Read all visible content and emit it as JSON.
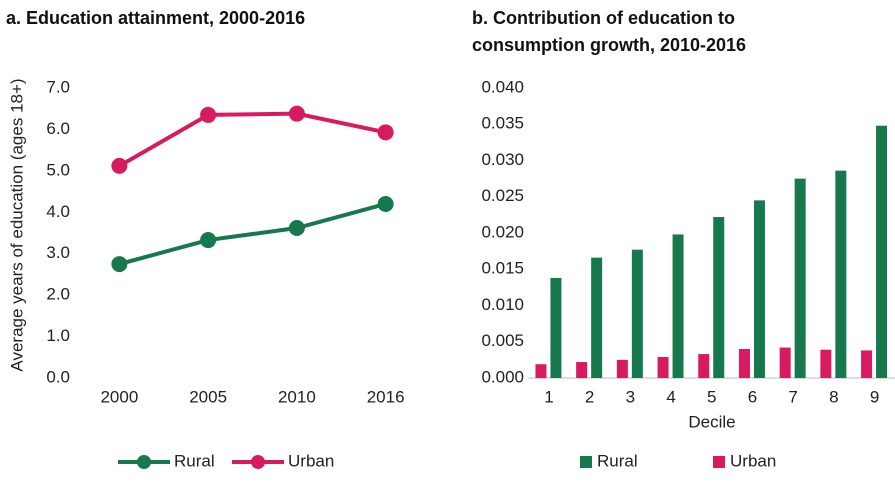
{
  "chart_data": [
    {
      "type": "line",
      "title": "a. Education attainment, 2000-2016",
      "y_label": "Average years of education (ages 18+)",
      "categories": [
        "2000",
        "2005",
        "2010",
        "2016"
      ],
      "series": [
        {
          "name": "Rural",
          "color": "#17784e",
          "values": [
            2.75,
            3.33,
            3.62,
            4.2
          ]
        },
        {
          "name": "Urban",
          "color": "#d81b60",
          "values": [
            5.12,
            6.35,
            6.38,
            5.93
          ]
        }
      ],
      "ylim": [
        0,
        7
      ],
      "yticks": [
        {
          "value": 0,
          "label": "0.0"
        },
        {
          "value": 1,
          "label": "1.0"
        },
        {
          "value": 2,
          "label": "2.0"
        },
        {
          "value": 3,
          "label": "3.0"
        },
        {
          "value": 4,
          "label": "4.0"
        },
        {
          "value": 5,
          "label": "5.0"
        },
        {
          "value": 6,
          "label": "6.0"
        },
        {
          "value": 7,
          "label": "7.0"
        }
      ],
      "grid": false,
      "legend": "bottom"
    },
    {
      "type": "bar",
      "title": "b. Contribution of education to consumption growth, 2010-2016",
      "x_label": "Decile",
      "categories": [
        "1",
        "2",
        "3",
        "4",
        "5",
        "6",
        "7",
        "8",
        "9"
      ],
      "series": [
        {
          "name": "Rural",
          "color": "#17784e",
          "values": [
            0.0138,
            0.0166,
            0.0177,
            0.0198,
            0.0222,
            0.0245,
            0.0275,
            0.0286,
            0.0348
          ]
        },
        {
          "name": "Urban",
          "color": "#d81b60",
          "values": [
            0.0019,
            0.0022,
            0.0025,
            0.0029,
            0.0033,
            0.004,
            0.0042,
            0.0039,
            0.0038
          ]
        }
      ],
      "ylim": [
        0,
        0.04
      ],
      "yticks": [
        {
          "value": 0,
          "label": "0.000"
        },
        {
          "value": 0.005,
          "label": "0.005"
        },
        {
          "value": 0.01,
          "label": "0.010"
        },
        {
          "value": 0.015,
          "label": "0.015"
        },
        {
          "value": 0.02,
          "label": "0.020"
        },
        {
          "value": 0.025,
          "label": "0.025"
        },
        {
          "value": 0.03,
          "label": "0.030"
        },
        {
          "value": 0.035,
          "label": "0.035"
        },
        {
          "value": 0.04,
          "label": "0.040"
        }
      ],
      "grid": false,
      "legend": "bottom"
    }
  ]
}
